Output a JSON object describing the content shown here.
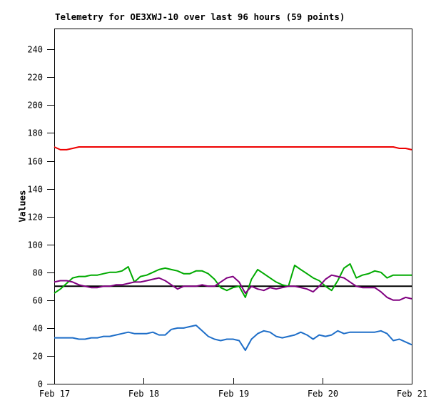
{
  "window": {
    "background": "#ffffff",
    "frame_color": "#000000"
  },
  "chart_data": {
    "type": "line",
    "title": "Telemetry for OE3XWJ-10 over last 96 hours (59 points)",
    "ylabel": "Values",
    "xlabel": "",
    "ylim": [
      0,
      255
    ],
    "yticks": [
      0,
      20,
      40,
      60,
      80,
      100,
      120,
      140,
      160,
      180,
      200,
      220,
      240
    ],
    "xtick_labels": [
      "Feb 17",
      "Feb 18",
      "Feb 19",
      "Feb 20",
      "Feb 21"
    ],
    "x_span_hours": 96,
    "points_per_series": 59,
    "grid": false,
    "legend": "none",
    "series": [
      {
        "name": "black-baseline",
        "color": "#000000",
        "values": [
          70,
          70,
          70,
          70,
          70,
          70,
          70,
          70,
          70,
          70,
          70,
          70,
          70,
          70,
          70,
          70,
          70,
          70,
          70,
          70,
          70,
          70,
          70,
          70,
          70,
          70,
          70,
          70,
          70,
          70,
          70,
          70,
          70,
          70,
          70,
          70,
          70,
          70,
          70,
          70,
          70,
          70,
          70,
          70,
          70,
          70,
          70,
          70,
          70,
          70,
          70,
          70,
          70,
          70,
          70,
          70,
          70,
          70,
          70
        ]
      },
      {
        "name": "red",
        "color": "#ee0000",
        "values": [
          170,
          168,
          168,
          169,
          170,
          170,
          170,
          170,
          170,
          170,
          170,
          170,
          170,
          170,
          170,
          170,
          170,
          170,
          170,
          170,
          170,
          170,
          170,
          170,
          170,
          170,
          170,
          170,
          170,
          170,
          170,
          170,
          170,
          170,
          170,
          170,
          170,
          170,
          170,
          170,
          170,
          170,
          170,
          170,
          170,
          170,
          170,
          170,
          170,
          170,
          170,
          170,
          170,
          170,
          170,
          170,
          169,
          169,
          168
        ]
      },
      {
        "name": "blue",
        "color": "#1e6ec8",
        "values": [
          33,
          33,
          33,
          33,
          32,
          32,
          33,
          33,
          34,
          34,
          35,
          36,
          37,
          36,
          36,
          36,
          37,
          35,
          35,
          39,
          40,
          40,
          41,
          42,
          38,
          34,
          32,
          31,
          32,
          32,
          31,
          24,
          32,
          36,
          38,
          37,
          34,
          33,
          34,
          35,
          37,
          35,
          32,
          35,
          34,
          35,
          38,
          36,
          37,
          37,
          37,
          37,
          37,
          38,
          36,
          31,
          32,
          30,
          28
        ]
      },
      {
        "name": "green",
        "color": "#00aa00",
        "values": [
          65,
          68,
          72,
          76,
          77,
          77,
          78,
          78,
          79,
          80,
          80,
          81,
          84,
          73,
          77,
          78,
          80,
          82,
          83,
          82,
          81,
          79,
          79,
          81,
          81,
          79,
          75,
          69,
          67,
          69,
          70,
          62,
          75,
          82,
          79,
          76,
          73,
          71,
          70,
          85,
          82,
          79,
          76,
          74,
          70,
          67,
          74,
          83,
          86,
          76,
          78,
          79,
          81,
          80,
          76,
          78,
          78,
          78,
          78
        ]
      },
      {
        "name": "purple",
        "color": "#800080",
        "values": [
          73,
          74,
          74,
          73,
          71,
          70,
          69,
          69,
          70,
          70,
          71,
          71,
          72,
          73,
          73,
          74,
          75,
          76,
          74,
          71,
          68,
          70,
          70,
          70,
          71,
          70,
          70,
          73,
          76,
          77,
          73,
          65,
          70,
          68,
          67,
          69,
          68,
          69,
          70,
          70,
          69,
          68,
          66,
          70,
          75,
          78,
          77,
          76,
          73,
          70,
          69,
          69,
          69,
          66,
          62,
          60,
          60,
          62,
          61
        ]
      }
    ]
  }
}
